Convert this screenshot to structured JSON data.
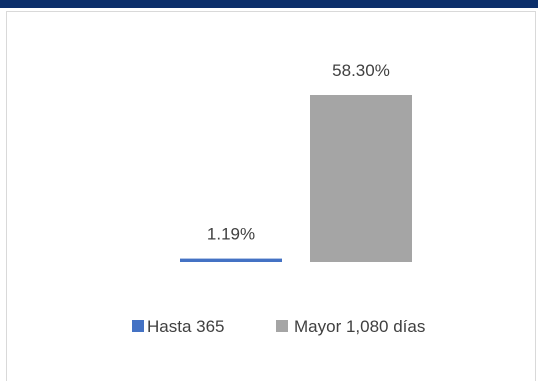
{
  "chart_data": {
    "type": "bar",
    "categories": [
      "Hasta 365",
      "Mayor 1,080 días"
    ],
    "values": [
      1.19,
      58.3
    ],
    "labels": [
      "1.19%",
      "58.30%"
    ],
    "colors": [
      "#4472c4",
      "#a5a5a5"
    ],
    "ylim": [
      0,
      58.3
    ],
    "grid": false,
    "legend_placement": "bottom",
    "title": "",
    "xlabel": "",
    "ylabel": ""
  },
  "header": {
    "bar_color": "#0c2f6b"
  }
}
